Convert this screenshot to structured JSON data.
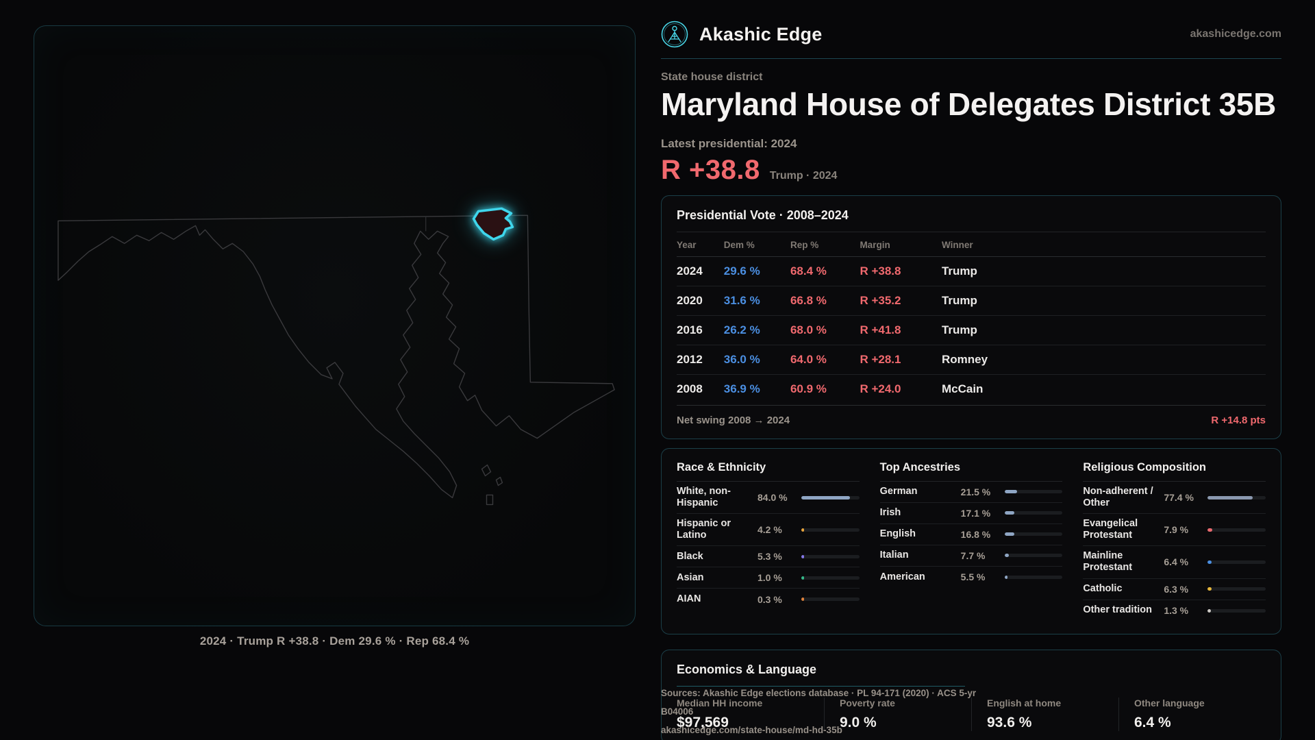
{
  "brand": {
    "name": "Akashic Edge",
    "domain": "akashicedge.com"
  },
  "header": {
    "kicker": "State house district",
    "title": "Maryland House of Delegates District 35B",
    "latest_label": "Latest presidential: 2024",
    "hero_margin": "R +38.8",
    "hero_sub": "Trump · 2024"
  },
  "map": {
    "caption": "2024 · Trump R +38.8 · Dem 29.6 % · Rep 68.4 %"
  },
  "presidential": {
    "title": "Presidential Vote · 2008–2024",
    "columns": [
      "Year",
      "Dem %",
      "Rep %",
      "Margin",
      "Winner"
    ],
    "rows": [
      {
        "year": "2024",
        "dem": "29.6 %",
        "rep": "68.4 %",
        "margin": "R +38.8",
        "winner": "Trump"
      },
      {
        "year": "2020",
        "dem": "31.6 %",
        "rep": "66.8 %",
        "margin": "R +35.2",
        "winner": "Trump"
      },
      {
        "year": "2016",
        "dem": "26.2 %",
        "rep": "68.0 %",
        "margin": "R +41.8",
        "winner": "Trump"
      },
      {
        "year": "2012",
        "dem": "36.0 %",
        "rep": "64.0 %",
        "margin": "R +28.1",
        "winner": "Romney"
      },
      {
        "year": "2008",
        "dem": "36.9 %",
        "rep": "60.9 %",
        "margin": "R +24.0",
        "winner": "McCain"
      }
    ],
    "net_swing_label": "Net swing 2008 → 2024",
    "net_swing_value": "R +14.8 pts"
  },
  "demographics": {
    "race": {
      "title": "Race & Ethnicity",
      "rows": [
        {
          "label": "White, non-Hispanic",
          "value": "84.0 %",
          "pct": 84.0,
          "color": "#8fa6c4"
        },
        {
          "label": "Hispanic or Latino",
          "value": "4.2 %",
          "pct": 4.2,
          "color": "#e8a43c"
        },
        {
          "label": "Black",
          "value": "5.3 %",
          "pct": 5.3,
          "color": "#8578e8"
        },
        {
          "label": "Asian",
          "value": "1.0 %",
          "pct": 1.0,
          "color": "#35b98a"
        },
        {
          "label": "AIAN",
          "value": "0.3 %",
          "pct": 0.3,
          "color": "#e0823c"
        }
      ]
    },
    "ancestries": {
      "title": "Top Ancestries",
      "rows": [
        {
          "label": "German",
          "value": "21.5 %",
          "pct": 21.5,
          "color": "#8fa6c4"
        },
        {
          "label": "Irish",
          "value": "17.1 %",
          "pct": 17.1,
          "color": "#8fa6c4"
        },
        {
          "label": "English",
          "value": "16.8 %",
          "pct": 16.8,
          "color": "#8fa6c4"
        },
        {
          "label": "Italian",
          "value": "7.7 %",
          "pct": 7.7,
          "color": "#8fa6c4"
        },
        {
          "label": "American",
          "value": "5.5 %",
          "pct": 5.5,
          "color": "#8fa6c4"
        }
      ]
    },
    "religion": {
      "title": "Religious Composition",
      "rows": [
        {
          "label": "Non-adherent / Other",
          "value": "77.4 %",
          "pct": 77.4,
          "color": "#8b99b0"
        },
        {
          "label": "Evangelical Protestant",
          "value": "7.9 %",
          "pct": 7.9,
          "color": "#e8696e"
        },
        {
          "label": "Mainline Protestant",
          "value": "6.4 %",
          "pct": 6.4,
          "color": "#4b8fe2"
        },
        {
          "label": "Catholic",
          "value": "6.3 %",
          "pct": 6.3,
          "color": "#e8b83c"
        },
        {
          "label": "Other tradition",
          "value": "1.3 %",
          "pct": 1.3,
          "color": "#cfcbc6"
        }
      ]
    }
  },
  "economics": {
    "title": "Economics & Language",
    "stats": [
      {
        "label": "Median HH income",
        "value": "$97,569"
      },
      {
        "label": "Poverty rate",
        "value": "9.0 %"
      },
      {
        "label": "English at home",
        "value": "93.6 %"
      },
      {
        "label": "Other language",
        "value": "6.4 %"
      }
    ]
  },
  "sources": {
    "line1": "Sources: Akashic Edge elections database · PL 94-171 (2020) · ACS 5-yr B04006",
    "line2": "akashicedge.com/state-house/md-hd-35b"
  },
  "colors": {
    "accent_cyan": "#3fd6ec",
    "rep_red": "#f0696e",
    "dem_blue": "#4b8fe2",
    "background": "#070709"
  }
}
